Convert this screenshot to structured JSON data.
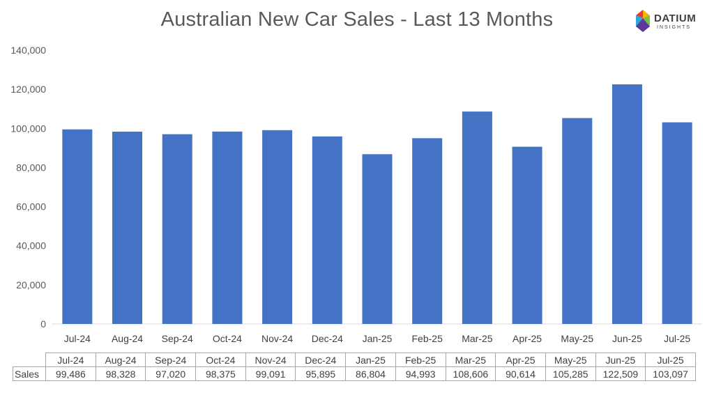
{
  "chart_data": {
    "type": "bar",
    "title": "Australian New Car Sales  - Last 13 Months",
    "categories": [
      "Jul-24",
      "Aug-24",
      "Sep-24",
      "Oct-24",
      "Nov-24",
      "Dec-24",
      "Jan-25",
      "Feb-25",
      "Mar-25",
      "Apr-25",
      "May-25",
      "Jun-25",
      "Jul-25"
    ],
    "series": [
      {
        "name": "Sales",
        "values": [
          99486,
          98328,
          97020,
          98375,
          99091,
          95895,
          86804,
          94993,
          108606,
          90614,
          105285,
          122509,
          103097
        ]
      }
    ],
    "ylim": [
      0,
      140000
    ],
    "yticks": [
      "0",
      "20,000",
      "40,000",
      "60,000",
      "80,000",
      "100,000",
      "120,000",
      "140,000"
    ],
    "grid": false,
    "bar_color": "#4472C4",
    "data_table": {
      "row_label": "Sales",
      "values": [
        "99,486",
        "98,328",
        "97,020",
        "98,375",
        "99,091",
        "95,895",
        "86,804",
        "94,993",
        "108,606",
        "90,614",
        "105,285",
        "122,509",
        "103,097"
      ]
    }
  },
  "logo": {
    "word": "DATIUM",
    "sub": "INSIGHTS",
    "colors": [
      "#e63a3a",
      "#f7b500",
      "#2aa8e0",
      "#7bc043",
      "#5b3a9a"
    ]
  }
}
